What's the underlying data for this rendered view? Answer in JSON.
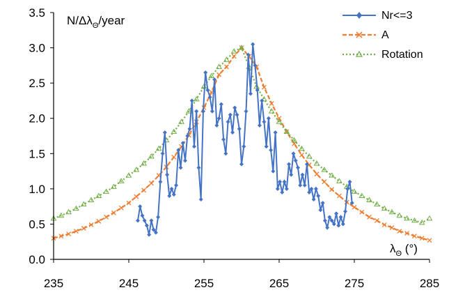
{
  "chart_data": {
    "type": "line",
    "title": "",
    "xlabel": "λ",
    "xlabel_sub": "Θ",
    "xlabel_suffix": " (°)",
    "ylabel": "N/Δλ",
    "ylabel_sub": "Θ",
    "ylabel_suffix": "/year",
    "xlim": [
      235,
      285
    ],
    "ylim": [
      0,
      3.5
    ],
    "xticks": [
      235,
      245,
      255,
      265,
      275,
      285
    ],
    "xtick_labels": [
      "235",
      "245",
      "255",
      "265",
      "275",
      "285"
    ],
    "yticks": [
      0,
      0.5,
      1,
      1.5,
      2,
      2.5,
      3,
      3.5
    ],
    "ytick_labels": [
      "0.0",
      "0.5",
      "1.0",
      "1.5",
      "2.0",
      "2.5",
      "3.0",
      "3.5"
    ],
    "grid": false,
    "legend_position": "top-right",
    "series": [
      {
        "name": "Nr<=3",
        "color": "#4472C4",
        "marker": "diamond",
        "line_style": "solid",
        "x": [
          246.2,
          246.5,
          246.8,
          247.1,
          247.4,
          247.7,
          248.0,
          248.3,
          248.6,
          248.9,
          249.2,
          249.5,
          249.8,
          250.1,
          250.4,
          250.7,
          251.0,
          251.3,
          251.6,
          251.9,
          252.2,
          252.5,
          252.8,
          253.1,
          253.4,
          253.7,
          254.0,
          254.3,
          254.6,
          254.9,
          255.2,
          255.5,
          255.8,
          256.1,
          256.4,
          256.7,
          257.0,
          257.3,
          257.6,
          257.9,
          258.2,
          258.5,
          258.8,
          259.1,
          259.4,
          259.7,
          260.0,
          260.3,
          260.6,
          260.9,
          261.2,
          261.5,
          261.8,
          262.1,
          262.4,
          262.7,
          263.0,
          263.3,
          263.6,
          263.9,
          264.2,
          264.5,
          264.8,
          265.1,
          265.4,
          265.7,
          266.0,
          266.3,
          266.6,
          266.9,
          267.2,
          267.5,
          267.8,
          268.1,
          268.4,
          268.7,
          269.0,
          269.3,
          269.6,
          269.9,
          270.2,
          270.5,
          270.8,
          271.1,
          271.4,
          271.7,
          272.0,
          272.3,
          272.6,
          272.9,
          273.2,
          273.5,
          273.8,
          274.1,
          274.4,
          274.7
        ],
        "values": [
          0.55,
          0.75,
          0.62,
          0.55,
          0.48,
          0.35,
          0.55,
          0.42,
          0.38,
          0.6,
          1.1,
          1.5,
          1.8,
          1.2,
          0.9,
          1.0,
          0.92,
          1.05,
          1.55,
          1.3,
          1.65,
          1.4,
          1.75,
          1.85,
          2.25,
          1.6,
          2.1,
          1.3,
          0.85,
          2.1,
          2.65,
          2.4,
          2.3,
          2.1,
          2.55,
          1.9,
          2.0,
          2.2,
          1.7,
          1.5,
          1.95,
          2.05,
          1.8,
          2.15,
          2.05,
          1.85,
          1.35,
          1.6,
          2.1,
          2.9,
          2.35,
          3.05,
          2.75,
          2.4,
          1.9,
          2.25,
          1.95,
          1.6,
          2.0,
          1.55,
          1.25,
          1.8,
          1.0,
          1.1,
          0.95,
          1.1,
          1.0,
          1.35,
          1.2,
          1.5,
          1.4,
          1.3,
          1.05,
          1.2,
          1.05,
          1.35,
          0.95,
          1.0,
          0.85,
          1.0,
          0.9,
          0.7,
          0.8,
          0.55,
          0.45,
          0.6,
          0.55,
          0.5,
          0.65,
          0.48,
          0.6,
          0.5,
          0.68,
          1.0,
          1.1,
          0.8
        ]
      },
      {
        "name": "A",
        "color": "#ED7D31",
        "marker": "x",
        "line_style": "dashed",
        "formula": "exponential",
        "peak": {
          "x": 260,
          "y": 3.0
        },
        "x": [
          235,
          236,
          237,
          238,
          239,
          240,
          241,
          242,
          243,
          244,
          245,
          246,
          247,
          248,
          249,
          250,
          251,
          252,
          253,
          254,
          255,
          256,
          257,
          258,
          259,
          260,
          261,
          262,
          263,
          264,
          265,
          266,
          267,
          268,
          269,
          270,
          271,
          272,
          273,
          274,
          275,
          276,
          277,
          278,
          279,
          280,
          281,
          282,
          283,
          284,
          285
        ],
        "values": [
          0.3,
          0.33,
          0.36,
          0.4,
          0.44,
          0.49,
          0.54,
          0.6,
          0.66,
          0.73,
          0.8,
          0.89,
          0.98,
          1.08,
          1.19,
          1.31,
          1.45,
          1.6,
          1.76,
          1.95,
          2.15,
          2.37,
          2.62,
          2.73,
          2.88,
          3.0,
          2.88,
          2.73,
          2.44,
          2.21,
          2.0,
          1.81,
          1.64,
          1.48,
          1.34,
          1.21,
          1.1,
          0.99,
          0.9,
          0.81,
          0.74,
          0.67,
          0.6,
          0.55,
          0.49,
          0.45,
          0.4,
          0.37,
          0.33,
          0.3,
          0.27
        ]
      },
      {
        "name": "Rotation",
        "color": "#70AD47",
        "marker": "triangle",
        "line_style": "dotted",
        "formula": "lorentzian",
        "peak": {
          "x": 260,
          "y": 3.0
        },
        "x": [
          235,
          236,
          237,
          238,
          239,
          240,
          241,
          242,
          243,
          244,
          245,
          246,
          247,
          248,
          249,
          250,
          251,
          252,
          253,
          254,
          255,
          256,
          257,
          258,
          259,
          260,
          261,
          262,
          263,
          264,
          265,
          266,
          267,
          268,
          269,
          270,
          271,
          272,
          273,
          274,
          275,
          276,
          277,
          278,
          279,
          280,
          281,
          282,
          283,
          284,
          285
        ],
        "values": [
          0.58,
          0.62,
          0.67,
          0.72,
          0.78,
          0.84,
          0.9,
          0.96,
          1.03,
          1.11,
          1.19,
          1.27,
          1.36,
          1.46,
          1.57,
          1.69,
          1.81,
          1.95,
          2.1,
          2.27,
          2.45,
          2.6,
          2.73,
          2.83,
          2.95,
          3.0,
          2.73,
          2.45,
          2.27,
          2.1,
          1.95,
          1.81,
          1.69,
          1.57,
          1.46,
          1.36,
          1.27,
          1.19,
          1.11,
          1.03,
          0.96,
          0.9,
          0.84,
          0.78,
          0.72,
          0.67,
          0.62,
          0.58,
          0.55,
          0.52,
          0.58
        ]
      }
    ]
  }
}
